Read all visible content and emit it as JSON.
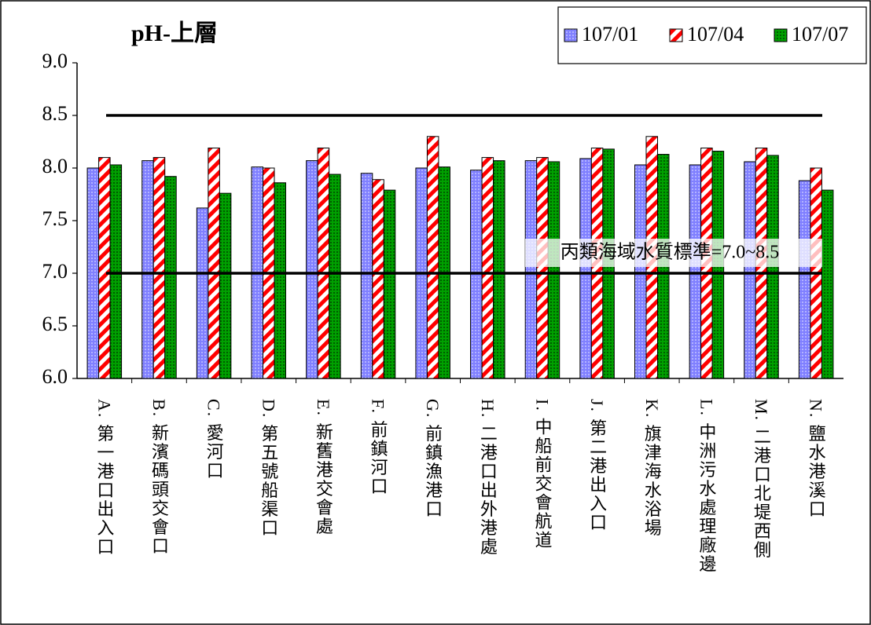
{
  "chart_data": {
    "type": "bar",
    "title": "pH-上層",
    "categories": [
      "A. 第一港口出入口",
      "B. 新濱碼頭交會口",
      "C. 愛河口",
      "D. 第五號船渠口",
      "E. 新舊港交會處",
      "F. 前鎮河口",
      "G. 前鎮漁港口",
      "H. 二港口出外港處",
      "I. 中船前交會航道",
      "J. 第二港出入口",
      "K. 旗津海水浴場",
      "L. 中洲污水處理廠邊",
      "M. 二港口北堤西側",
      "N. 鹽水港溪口"
    ],
    "series": [
      {
        "name": "107/01",
        "color": "#8080ff",
        "values": [
          8.0,
          8.07,
          7.62,
          8.01,
          8.07,
          7.95,
          8.0,
          7.98,
          8.07,
          8.09,
          8.03,
          8.03,
          8.06,
          7.88
        ]
      },
      {
        "name": "107/04",
        "color": "#ff0000",
        "values": [
          8.1,
          8.1,
          8.19,
          8.0,
          8.19,
          7.89,
          8.3,
          8.1,
          8.1,
          8.19,
          8.3,
          8.19,
          8.19,
          8.0
        ]
      },
      {
        "name": "107/07",
        "color": "#00a000",
        "values": [
          8.03,
          7.92,
          7.76,
          7.86,
          7.94,
          7.79,
          8.01,
          8.07,
          8.06,
          8.18,
          8.13,
          8.16,
          8.12,
          7.79
        ]
      }
    ],
    "ylim": [
      6.0,
      9.0
    ],
    "yticks": [
      {
        "value": 6,
        "label": "6.0"
      },
      {
        "value": 6.5,
        "label": "6.5"
      },
      {
        "value": 7,
        "label": "7.0"
      },
      {
        "value": 7.5,
        "label": "7.5"
      },
      {
        "value": 8,
        "label": "8.0"
      },
      {
        "value": 8.5,
        "label": "8.5"
      },
      {
        "value": 9,
        "label": "9.0"
      }
    ],
    "reference_lines": [
      8.5,
      7.0
    ],
    "annotation": "丙類海域水質標準=7.0~8.5",
    "legend": "top-right"
  }
}
